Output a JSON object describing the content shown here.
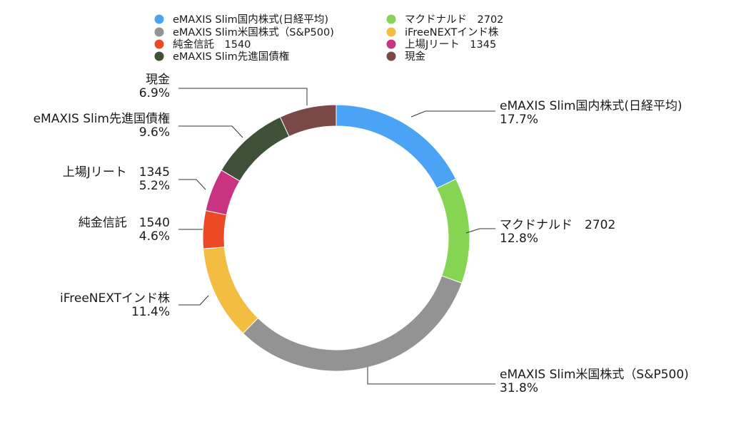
{
  "chart_data": {
    "type": "pie",
    "variant": "donut",
    "legend_position": "top",
    "slices": [
      {
        "name": "eMAXIS Slim国内株式(日経平均)",
        "label": "eMAXIS Slim国内株式(日経平均)",
        "value": 17.7,
        "display": "17.7%",
        "color": "#4aa3f5"
      },
      {
        "name": "マクドナルド　2702",
        "label": "マクドナルド　2702",
        "value": 12.8,
        "display": "12.8%",
        "color": "#85d553"
      },
      {
        "name": "eMAXIS Slim米国株式（S&P500)",
        "label": "eMAXIS Slim米国株式（S&P500)",
        "value": 31.8,
        "display": "31.8%",
        "color": "#939393"
      },
      {
        "name": "iFreeNEXTインド株",
        "label": "iFreeNEXTインド株",
        "value": 11.4,
        "display": "11.4%",
        "color": "#f2bd40"
      },
      {
        "name": "純金信託　1540",
        "label": "純金信託　1540",
        "value": 4.6,
        "display": "4.6%",
        "color": "#eb4a25"
      },
      {
        "name": "上場Jリート　1345",
        "label": "上場Jリート　1345",
        "value": 5.2,
        "display": "5.2%",
        "color": "#c93482"
      },
      {
        "name": "eMAXIS Slim先進国債権",
        "label": "eMAXIS Slim先進国債権",
        "value": 9.6,
        "display": "9.6%",
        "color": "#3e5037"
      },
      {
        "name": "現金",
        "label": "現金",
        "value": 6.9,
        "display": "6.9%",
        "color": "#7a4947"
      }
    ]
  }
}
